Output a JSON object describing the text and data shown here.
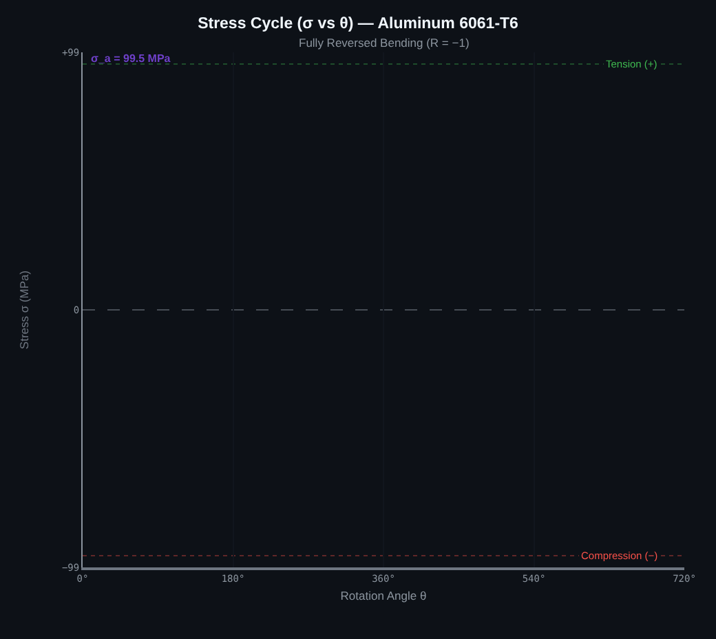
{
  "chart_data": {
    "type": "line",
    "title": "Stress Cycle (σ vs θ) — Aluminum 6061-T6",
    "subtitle": "Fully Reversed Bending (R = −1)",
    "xlabel": "Rotation Angle θ",
    "ylabel": "Stress σ (MPa)",
    "annotations": [
      "σ_a = 99.5 MPa"
    ],
    "xlim": [
      0,
      720
    ],
    "xticks": [
      {
        "value": 0,
        "label": "0°"
      },
      {
        "value": 180,
        "label": "180°"
      },
      {
        "value": 360,
        "label": "360°"
      },
      {
        "value": 540,
        "label": "540°"
      },
      {
        "value": 720,
        "label": "720°"
      }
    ],
    "ylim": [
      -99,
      99
    ],
    "yticks": [
      {
        "value": -99,
        "label": "−99"
      },
      0,
      {
        "value": 99,
        "label": "+99"
      }
    ],
    "ref_lines": [
      {
        "axis": "y",
        "value": 94.5,
        "label": "Tension (+)",
        "color": "#3fb950",
        "line_style": "dotted"
      },
      {
        "axis": "y",
        "value": 0,
        "line_style": "dashed"
      },
      {
        "axis": "y",
        "value": -94.5,
        "label": "Compression (−)",
        "color": "#f85149",
        "line_style": "dotted"
      }
    ],
    "grid": "x"
  }
}
